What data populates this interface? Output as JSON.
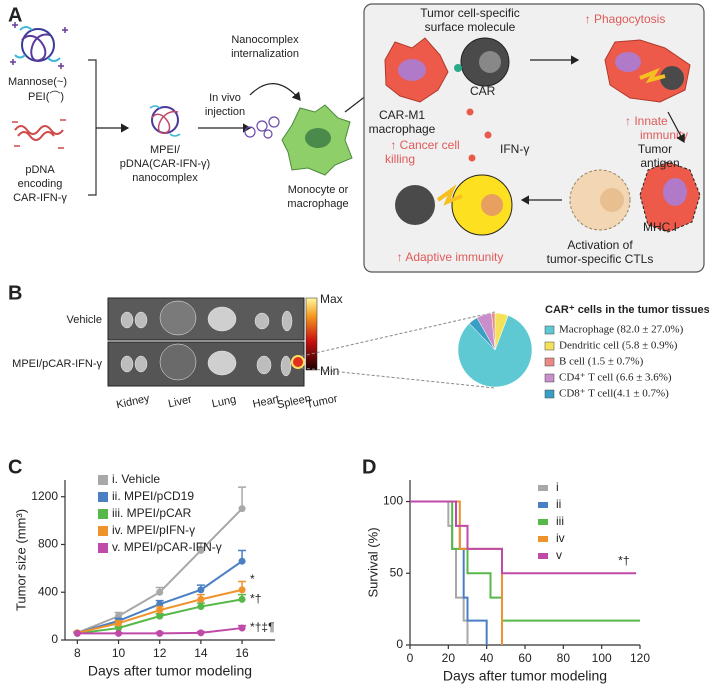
{
  "panel_labels": [
    "A",
    "B",
    "C",
    "D"
  ],
  "diagram": {
    "mannose": "Mannose(~)",
    "pei": "PEI(⌒)",
    "pdna": [
      "pDNA",
      "encoding",
      "CAR-IFN-γ"
    ],
    "injection": [
      "In vivo",
      "injection"
    ],
    "nanocomplex": [
      "MPEI/",
      "pDNA(CAR-IFN-γ)",
      "nanocomplex"
    ],
    "internalization": [
      "Nanocomplex",
      "internalization"
    ],
    "monocyte": [
      "Monocyte or",
      "macrophage"
    ],
    "surface": [
      "Tumor cell-specific",
      "surface molecule"
    ],
    "car": "CAR",
    "carm1": [
      "CAR-M1",
      "macrophage"
    ],
    "phagocytosis": "↑ Phagocytosis",
    "innate": [
      "↑ Innate",
      "immunity"
    ],
    "antigen": [
      "Tumor",
      "antigen"
    ],
    "mhc": "MHC I",
    "killing": [
      "↑ Cancer cell",
      "killing"
    ],
    "ifn": "IFN-γ",
    "ctl": [
      "Activation of",
      "tumor-specific CTLs"
    ],
    "adaptive": "↑ Adaptive immunity"
  },
  "imaging": {
    "rows": [
      "Vehicle",
      "MPEI/pCAR-IFN-γ"
    ],
    "organs": [
      "Kidney",
      "Liver",
      "Lung",
      "Heart",
      "Spleen",
      "Tumor"
    ],
    "colorbar": [
      "Max",
      "Min"
    ]
  },
  "chart_data": [
    {
      "type": "pie",
      "title": "CAR⁺ cells in the tumor tissues",
      "categories": [
        "Macrophage (82.0 ± 27.0%)",
        "Dendritic cell (5.8 ± 0.9%)",
        "B cell (1.5 ± 0.7%)",
        "CD4⁺ T cell (6.6 ± 3.6%)",
        "CD8⁺ T cell(4.1 ± 0.7%)"
      ],
      "values": [
        82.0,
        5.8,
        1.5,
        6.6,
        4.1
      ],
      "colors": [
        "#5ec9d3",
        "#f4e25a",
        "#e98a84",
        "#c98fcb",
        "#3a9fc4"
      ]
    },
    {
      "type": "line",
      "xlabel": "Days after tumor modeling",
      "ylabel": "Tumor size (mm³)",
      "x": [
        8,
        10,
        12,
        14,
        16
      ],
      "xlim": [
        7.4,
        17.6
      ],
      "xticks": [
        8,
        10,
        12,
        14,
        16
      ],
      "ylim": [
        0,
        1340
      ],
      "yticks": [
        0,
        400,
        800,
        1200
      ],
      "series": [
        {
          "name": "i. Vehicle",
          "color": "#a8a8a8",
          "values": [
            60,
            200,
            400,
            750,
            1100
          ],
          "errors": [
            10,
            30,
            40,
            60,
            180
          ]
        },
        {
          "name": "ii. MPEI/pCD19",
          "color": "#4a7fc4",
          "values": [
            60,
            160,
            300,
            420,
            660
          ],
          "errors": [
            10,
            20,
            30,
            40,
            90
          ]
        },
        {
          "name": "iii. MPEI/pCAR",
          "color": "#56b848",
          "values": [
            55,
            100,
            200,
            280,
            340
          ],
          "errors": [
            5,
            15,
            20,
            30,
            40
          ]
        },
        {
          "name": "iv. MPEI/pIFN-γ",
          "color": "#f0922c",
          "values": [
            60,
            140,
            250,
            340,
            420
          ],
          "errors": [
            10,
            20,
            30,
            40,
            70
          ]
        },
        {
          "name": "v. MPEI/pCAR-IFN-γ",
          "color": "#c04aa8",
          "values": [
            55,
            55,
            55,
            60,
            100
          ],
          "errors": [
            5,
            5,
            10,
            10,
            20
          ]
        }
      ],
      "annotations": [
        "*",
        "*†",
        "*†‡¶"
      ]
    },
    {
      "type": "step",
      "xlabel": "Days after tumor modeling",
      "ylabel": "Survival (%)",
      "xlim": [
        0,
        120
      ],
      "xticks": [
        0,
        20,
        40,
        60,
        80,
        100,
        120
      ],
      "ylim": [
        0,
        115
      ],
      "yticks": [
        0,
        50,
        100
      ],
      "series": [
        {
          "name": "i",
          "color": "#a8a8a8",
          "x": [
            0,
            20,
            22,
            24,
            28,
            30
          ],
          "values": [
            100,
            83,
            67,
            33,
            17,
            0
          ]
        },
        {
          "name": "ii",
          "color": "#4a7fc4",
          "x": [
            0,
            24,
            26,
            28,
            30,
            40
          ],
          "values": [
            100,
            83,
            67,
            33,
            17,
            0
          ]
        },
        {
          "name": "iii",
          "color": "#56b848",
          "x": [
            0,
            22,
            30,
            42,
            48,
            120
          ],
          "values": [
            100,
            67,
            50,
            33,
            17,
            17
          ]
        },
        {
          "name": "iv",
          "color": "#f0922c",
          "x": [
            0,
            26,
            48
          ],
          "values": [
            100,
            67,
            0
          ]
        },
        {
          "name": "v",
          "color": "#c04aa8",
          "x": [
            0,
            24,
            30,
            48,
            118
          ],
          "values": [
            100,
            83,
            67,
            50,
            50
          ]
        }
      ],
      "annotations": [
        "*†"
      ]
    }
  ]
}
